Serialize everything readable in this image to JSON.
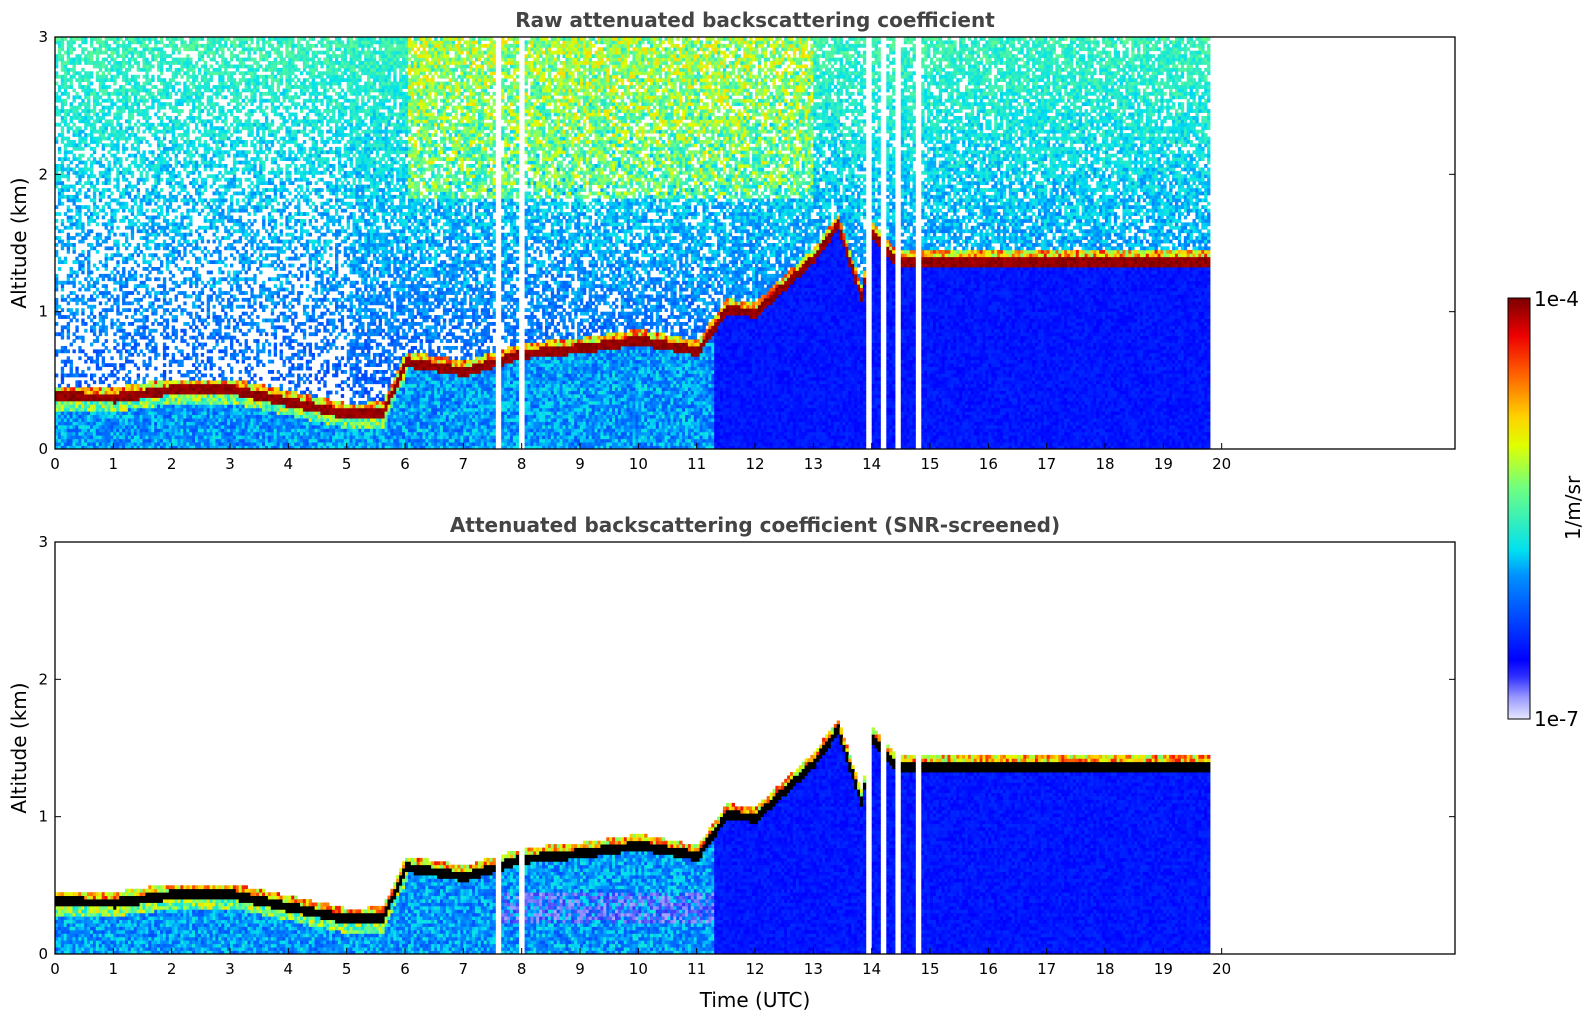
{
  "chart_data": [
    {
      "type": "heatmap",
      "title": "Raw attenuated backscattering coefficient",
      "xlabel": "",
      "ylabel": "Altitude (km)",
      "xlim": [
        0,
        24
      ],
      "ylim": [
        0,
        3
      ],
      "x_ticks": [
        "0",
        "1",
        "2",
        "3",
        "4",
        "5",
        "6",
        "7",
        "8",
        "9",
        "10",
        "11",
        "12",
        "13",
        "14",
        "15",
        "16",
        "17",
        "18",
        "19",
        "20"
      ],
      "y_ticks": [
        "0",
        "1",
        "2",
        "3"
      ],
      "data_end_time": 19.8,
      "grid": false,
      "colorscale": "jet",
      "screened": false,
      "layer_top_km": [
        {
          "t": 0.0,
          "alt": 0.37
        },
        {
          "t": 1.0,
          "alt": 0.36
        },
        {
          "t": 2.0,
          "alt": 0.42
        },
        {
          "t": 3.0,
          "alt": 0.42
        },
        {
          "t": 4.0,
          "alt": 0.33
        },
        {
          "t": 5.0,
          "alt": 0.24
        },
        {
          "t": 5.6,
          "alt": 0.25
        },
        {
          "t": 6.0,
          "alt": 0.62
        },
        {
          "t": 7.0,
          "alt": 0.55
        },
        {
          "t": 8.0,
          "alt": 0.68
        },
        {
          "t": 9.0,
          "alt": 0.72
        },
        {
          "t": 10.0,
          "alt": 0.78
        },
        {
          "t": 11.0,
          "alt": 0.7
        },
        {
          "t": 11.5,
          "alt": 1.0
        },
        {
          "t": 12.0,
          "alt": 0.98
        },
        {
          "t": 12.5,
          "alt": 1.18
        },
        {
          "t": 13.0,
          "alt": 1.38
        },
        {
          "t": 13.4,
          "alt": 1.62
        },
        {
          "t": 13.8,
          "alt": 1.1
        },
        {
          "t": 14.0,
          "alt": 1.55
        },
        {
          "t": 14.4,
          "alt": 1.35
        }
      ],
      "missing_time_ranges": [
        [
          7.5,
          7.62
        ],
        [
          7.92,
          8.0
        ],
        [
          13.9,
          13.98
        ],
        [
          14.15,
          14.25
        ],
        [
          14.4,
          14.5
        ],
        [
          14.75,
          14.82
        ]
      ]
    },
    {
      "type": "heatmap",
      "title": "Attenuated backscattering coefficient (SNR-screened)",
      "xlabel": "Time (UTC)",
      "ylabel": "Altitude (km)",
      "xlim": [
        0,
        24
      ],
      "ylim": [
        0,
        3
      ],
      "x_ticks": [
        "0",
        "1",
        "2",
        "3",
        "4",
        "5",
        "6",
        "7",
        "8",
        "9",
        "10",
        "11",
        "12",
        "13",
        "14",
        "15",
        "16",
        "17",
        "18",
        "19",
        "20"
      ],
      "y_ticks": [
        "0",
        "1",
        "2",
        "3"
      ],
      "data_end_time": 19.8,
      "grid": false,
      "colorscale": "jet",
      "screened": true
    }
  ],
  "colorbar": {
    "label": "1/m/sr",
    "min_label": "1e-7",
    "max_label": "1e-4",
    "scale": "log"
  }
}
